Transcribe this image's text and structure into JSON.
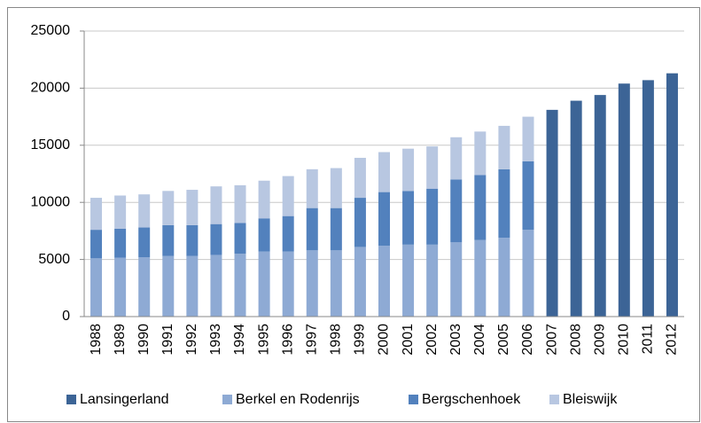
{
  "chart_data": {
    "type": "stacked-bar",
    "categories": [
      "1988",
      "1989",
      "1990",
      "1991",
      "1992",
      "1993",
      "1994",
      "1995",
      "1996",
      "1997",
      "1998",
      "1999",
      "2000",
      "2001",
      "2002",
      "2003",
      "2004",
      "2005",
      "2006",
      "2007",
      "2008",
      "2009",
      "2010",
      "2011",
      "2012"
    ],
    "series": [
      {
        "name": "Lansingerland",
        "color": "#3c6496",
        "values": [
          null,
          null,
          null,
          null,
          null,
          null,
          null,
          null,
          null,
          null,
          null,
          null,
          null,
          null,
          null,
          null,
          null,
          null,
          null,
          18100,
          18900,
          19400,
          20400,
          20700,
          21300
        ]
      },
      {
        "name": "Berkel en Rodenrijs",
        "color": "#8eaad4",
        "values": [
          5100,
          5150,
          5200,
          5300,
          5300,
          5400,
          5500,
          5700,
          5700,
          5800,
          5800,
          6100,
          6200,
          6300,
          6300,
          6500,
          6700,
          6900,
          7600,
          null,
          null,
          null,
          null,
          null,
          null
        ]
      },
      {
        "name": "Bergschenhoek",
        "color": "#5281bd",
        "values": [
          2500,
          2550,
          2600,
          2700,
          2700,
          2700,
          2700,
          2900,
          3100,
          3700,
          3700,
          4300,
          4700,
          4700,
          4900,
          5500,
          5700,
          6000,
          6000,
          null,
          null,
          null,
          null,
          null,
          null
        ]
      },
      {
        "name": "Bleiswijk",
        "color": "#b8c7e1",
        "values": [
          2800,
          2900,
          2900,
          3000,
          3100,
          3300,
          3300,
          3300,
          3500,
          3400,
          3500,
          3500,
          3500,
          3700,
          3700,
          3700,
          3800,
          3800,
          3900,
          null,
          null,
          null,
          null,
          null,
          null
        ]
      }
    ],
    "ylim": [
      0,
      25000
    ],
    "yticks": [
      0,
      5000,
      10000,
      15000,
      20000,
      25000
    ],
    "grid": true,
    "legend": "bottom"
  }
}
